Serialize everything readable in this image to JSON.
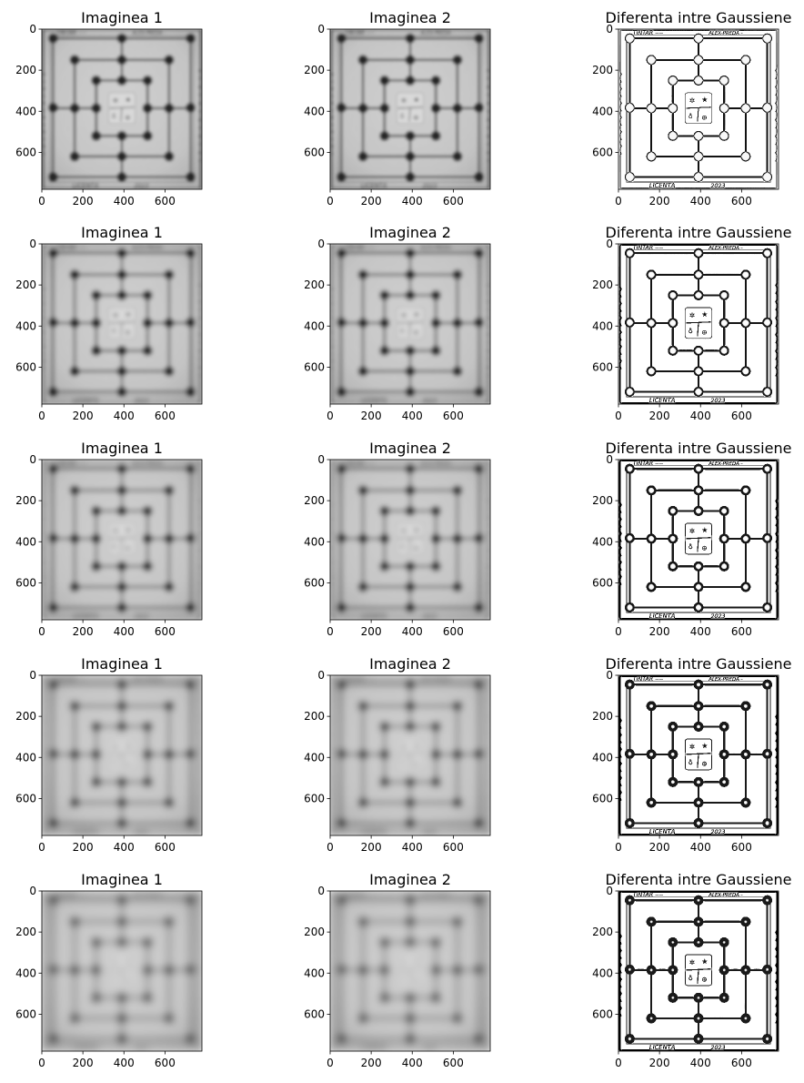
{
  "figure": {
    "rows": 5,
    "columns": 3,
    "panel_titles": [
      "Imaginea 1",
      "Imaginea 2",
      "Diferenta intre Gaussiene"
    ],
    "x_ticks": [
      "0",
      "200",
      "400",
      "600"
    ],
    "y_ticks": [
      "0",
      "200",
      "400",
      "600"
    ],
    "x_tick_values": [
      0,
      200,
      400,
      600
    ],
    "y_tick_values": [
      0,
      200,
      400,
      600
    ],
    "image_extent": [
      0,
      780
    ],
    "board_text": {
      "top_left": "TINTAR",
      "top_right": "ALEX-PREDA",
      "bottom_left": "LICENTĂ",
      "bottom_right": "2023"
    },
    "blur_levels": [
      1.6,
      2.4,
      3.2,
      4.0,
      4.8
    ],
    "dog_contrast_levels": [
      0.35,
      0.55,
      0.75,
      0.9,
      1.0
    ]
  }
}
